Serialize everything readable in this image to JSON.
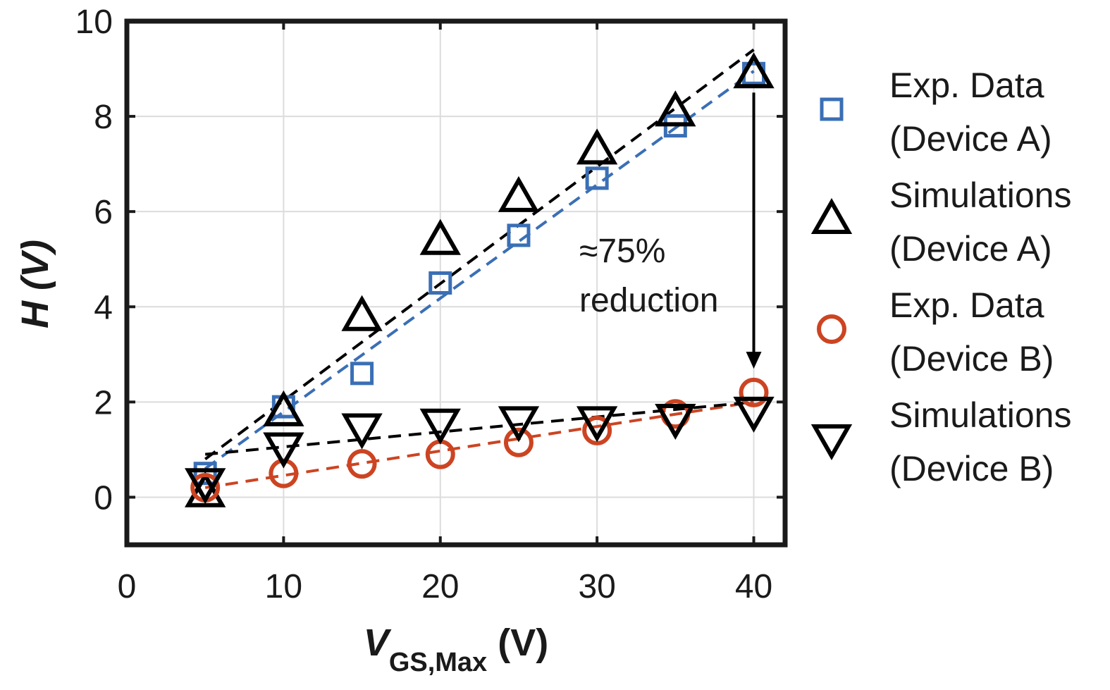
{
  "chart_data": {
    "type": "scatter",
    "xlabel": {
      "main": "V",
      "sub": "GS,Max",
      "unit": " (V)"
    },
    "ylabel": "H (V)",
    "xlim": [
      0,
      42
    ],
    "ylim": [
      -1,
      10
    ],
    "xticks": [
      0,
      10,
      20,
      30,
      40
    ],
    "yticks": [
      0,
      2,
      4,
      6,
      8,
      10
    ],
    "grid": true,
    "legend_position": "right",
    "series": [
      {
        "name": [
          "Exp. Data",
          "(Device A)"
        ],
        "marker": "square",
        "color": "#3a6fb5",
        "x": [
          5,
          10,
          15,
          20,
          25,
          30,
          35,
          40
        ],
        "y": [
          0.5,
          1.9,
          2.6,
          4.5,
          5.5,
          6.7,
          7.8,
          8.9
        ]
      },
      {
        "name": [
          "Simulations",
          "(Device A)"
        ],
        "marker": "triangle-up",
        "color": "#000000",
        "x": [
          5,
          10,
          15,
          20,
          25,
          30,
          35,
          40
        ],
        "y": [
          0.1,
          1.8,
          3.8,
          5.4,
          6.3,
          7.3,
          8.1,
          8.9
        ]
      },
      {
        "name": [
          "Exp. Data",
          "(Device B)"
        ],
        "marker": "circle",
        "color": "#cc4422",
        "x": [
          5,
          10,
          15,
          20,
          25,
          30,
          35,
          40
        ],
        "y": [
          0.2,
          0.5,
          0.7,
          0.9,
          1.15,
          1.4,
          1.75,
          2.2
        ]
      },
      {
        "name": [
          "Simulations",
          "(Device B)"
        ],
        "marker": "triangle-down",
        "color": "#000000",
        "x": [
          5,
          10,
          15,
          20,
          25,
          30,
          35,
          40
        ],
        "y": [
          0.3,
          1.05,
          1.45,
          1.55,
          1.6,
          1.6,
          1.65,
          1.8
        ]
      }
    ],
    "fit_lines": [
      {
        "color": "#3a6fb5",
        "x": [
          5,
          40
        ],
        "y": [
          0.6,
          8.95
        ]
      },
      {
        "color": "#000000",
        "x": [
          5,
          40
        ],
        "y": [
          0.8,
          9.4
        ]
      },
      {
        "color": "#cc4422",
        "x": [
          5,
          40
        ],
        "y": [
          0.2,
          2.0
        ]
      },
      {
        "color": "#000000",
        "x": [
          5,
          40
        ],
        "y": [
          0.9,
          2.0
        ]
      }
    ],
    "annotation": {
      "lines": [
        "≈75%",
        "reduction"
      ],
      "arrow_x": 40,
      "arrow_from_y": 8.5,
      "arrow_to_y": 2.7
    }
  }
}
